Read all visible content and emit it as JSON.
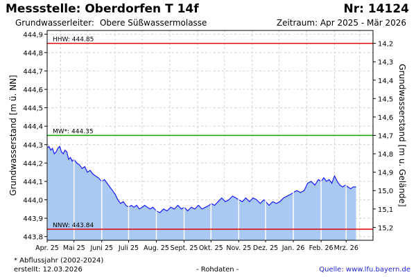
{
  "header": {
    "title": "Messstelle: Oberdorfen T 14f",
    "number": "Nr: 14124",
    "aquifer_label": "Grundwasserleiter:",
    "aquifer_value": "Obere Süßwassermolasse",
    "period": "Zeitraum: Apr 2025 - Mär 2026"
  },
  "footer": {
    "footnote": "* Abflussjahr (2002-2024)",
    "created": "erstellt:  12.03.2026",
    "raw_data": "- Rohdaten -",
    "source": "Quelle: www.lfu.bayern.de"
  },
  "chart_data": {
    "type": "area",
    "title": "Messstelle: Oberdorfen T 14f",
    "ylabel_left": "Grundwasserstand [m ü. NN]",
    "ylabel_right": "Grundwasserstand [m u. Gelände]",
    "ylim_left": [
      443.78,
      444.92
    ],
    "yticks_left": [
      "443,8",
      "443,9",
      "444,0",
      "444,1",
      "444,2",
      "444,3",
      "444,4",
      "444,5",
      "444,6",
      "444,7",
      "444,8",
      "444,9"
    ],
    "yticks_left_values": [
      443.8,
      443.9,
      444.0,
      444.1,
      444.2,
      444.3,
      444.4,
      444.5,
      444.6,
      444.7,
      444.8,
      444.9
    ],
    "yticks_right": [
      "14,2",
      "14,3",
      "14,4",
      "14,5",
      "14,6",
      "14,7",
      "14,8",
      "14,9",
      "15,0",
      "15,1",
      "15,2"
    ],
    "yticks_right_depths": [
      14.2,
      14.3,
      14.4,
      14.5,
      14.6,
      14.7,
      14.8,
      14.9,
      15.0,
      15.1,
      15.2
    ],
    "ground_level": 459.05,
    "xlim": [
      "2025-04-01",
      "2026-03-31"
    ],
    "xticks": [
      {
        "date": "2025-04-01",
        "label": "Apr. 25"
      },
      {
        "date": "2025-05-01",
        "label": "Mai 25"
      },
      {
        "date": "2025-06-01",
        "label": "Juni 25"
      },
      {
        "date": "2025-07-01",
        "label": "Juli 25"
      },
      {
        "date": "2025-08-01",
        "label": "Aug. 25"
      },
      {
        "date": "2025-09-01",
        "label": "Sept. 25"
      },
      {
        "date": "2025-10-01",
        "label": "Okt. 25"
      },
      {
        "date": "2025-11-01",
        "label": "Nov. 25"
      },
      {
        "date": "2025-12-01",
        "label": "Dez. 25"
      },
      {
        "date": "2026-01-01",
        "label": "Jan. 26"
      },
      {
        "date": "2026-02-01",
        "label": "Feb. 26"
      },
      {
        "date": "2026-03-01",
        "label": "Mrz. 26"
      }
    ],
    "reference_lines": [
      {
        "name": "HHW",
        "label": "HHW: 444.85",
        "value": 444.85,
        "color": "#dd0000"
      },
      {
        "name": "MW",
        "label": "MW*: 444.35",
        "value": 444.35,
        "color": "#00a000"
      },
      {
        "name": "NNW",
        "label": "NNW: 443.84",
        "value": 443.84,
        "color": "#dd0000"
      }
    ],
    "series": [
      {
        "line_color": "#1a1aff",
        "fill_color": "#a9c8f2",
        "points": [
          [
            "2025-04-01",
            444.28
          ],
          [
            "2025-04-03",
            444.29
          ],
          [
            "2025-04-05",
            444.27
          ],
          [
            "2025-04-07",
            444.28
          ],
          [
            "2025-04-09",
            444.25
          ],
          [
            "2025-04-11",
            444.26
          ],
          [
            "2025-04-13",
            444.28
          ],
          [
            "2025-04-15",
            444.29
          ],
          [
            "2025-04-17",
            444.26
          ],
          [
            "2025-04-19",
            444.25
          ],
          [
            "2025-04-21",
            444.27
          ],
          [
            "2025-04-23",
            444.26
          ],
          [
            "2025-04-25",
            444.22
          ],
          [
            "2025-04-27",
            444.23
          ],
          [
            "2025-04-29",
            444.21
          ],
          [
            "2025-05-01",
            444.22
          ],
          [
            "2025-05-04",
            444.2
          ],
          [
            "2025-05-07",
            444.19
          ],
          [
            "2025-05-10",
            444.17
          ],
          [
            "2025-05-13",
            444.18
          ],
          [
            "2025-05-16",
            444.15
          ],
          [
            "2025-05-19",
            444.16
          ],
          [
            "2025-05-22",
            444.14
          ],
          [
            "2025-05-25",
            444.13
          ],
          [
            "2025-05-28",
            444.12
          ],
          [
            "2025-06-01",
            444.1
          ],
          [
            "2025-06-04",
            444.11
          ],
          [
            "2025-06-07",
            444.09
          ],
          [
            "2025-06-10",
            444.07
          ],
          [
            "2025-06-13",
            444.05
          ],
          [
            "2025-06-16",
            444.03
          ],
          [
            "2025-06-19",
            444.0
          ],
          [
            "2025-06-22",
            443.98
          ],
          [
            "2025-06-25",
            443.99
          ],
          [
            "2025-06-28",
            443.97
          ],
          [
            "2025-07-01",
            443.96
          ],
          [
            "2025-07-04",
            443.97
          ],
          [
            "2025-07-07",
            443.96
          ],
          [
            "2025-07-10",
            443.97
          ],
          [
            "2025-07-13",
            443.95
          ],
          [
            "2025-07-16",
            443.96
          ],
          [
            "2025-07-19",
            443.97
          ],
          [
            "2025-07-22",
            443.96
          ],
          [
            "2025-07-25",
            443.95
          ],
          [
            "2025-07-28",
            443.96
          ],
          [
            "2025-08-01",
            443.94
          ],
          [
            "2025-08-05",
            443.93
          ],
          [
            "2025-08-09",
            443.95
          ],
          [
            "2025-08-13",
            443.94
          ],
          [
            "2025-08-17",
            443.96
          ],
          [
            "2025-08-21",
            443.95
          ],
          [
            "2025-08-25",
            443.97
          ],
          [
            "2025-08-29",
            443.95
          ],
          [
            "2025-09-01",
            443.96
          ],
          [
            "2025-09-05",
            443.94
          ],
          [
            "2025-09-09",
            443.96
          ],
          [
            "2025-09-13",
            443.95
          ],
          [
            "2025-09-17",
            443.97
          ],
          [
            "2025-09-21",
            443.95
          ],
          [
            "2025-09-25",
            443.96
          ],
          [
            "2025-09-29",
            443.97
          ],
          [
            "2025-10-01",
            443.98
          ],
          [
            "2025-10-05",
            443.97
          ],
          [
            "2025-10-09",
            443.99
          ],
          [
            "2025-10-13",
            444.01
          ],
          [
            "2025-10-17",
            443.99
          ],
          [
            "2025-10-21",
            444.0
          ],
          [
            "2025-10-25",
            444.02
          ],
          [
            "2025-10-29",
            444.01
          ],
          [
            "2025-11-01",
            444.0
          ],
          [
            "2025-11-05",
            443.99
          ],
          [
            "2025-11-09",
            444.01
          ],
          [
            "2025-11-13",
            443.99
          ],
          [
            "2025-11-17",
            444.01
          ],
          [
            "2025-11-21",
            444.0
          ],
          [
            "2025-11-25",
            443.98
          ],
          [
            "2025-11-29",
            444.0
          ],
          [
            "2025-12-01",
            443.99
          ],
          [
            "2025-12-05",
            443.97
          ],
          [
            "2025-12-09",
            443.99
          ],
          [
            "2025-12-13",
            443.98
          ],
          [
            "2025-12-17",
            443.99
          ],
          [
            "2025-12-21",
            444.01
          ],
          [
            "2025-12-25",
            444.02
          ],
          [
            "2025-12-29",
            444.03
          ],
          [
            "2026-01-01",
            444.04
          ],
          [
            "2026-01-05",
            444.05
          ],
          [
            "2026-01-09",
            444.04
          ],
          [
            "2026-01-13",
            444.05
          ],
          [
            "2026-01-17",
            444.09
          ],
          [
            "2026-01-21",
            444.1
          ],
          [
            "2026-01-25",
            444.08
          ],
          [
            "2026-01-29",
            444.11
          ],
          [
            "2026-02-01",
            444.1
          ],
          [
            "2026-02-04",
            444.12
          ],
          [
            "2026-02-07",
            444.1
          ],
          [
            "2026-02-10",
            444.11
          ],
          [
            "2026-02-13",
            444.09
          ],
          [
            "2026-02-16",
            444.13
          ],
          [
            "2026-02-19",
            444.1
          ],
          [
            "2026-02-22",
            444.08
          ],
          [
            "2026-02-25",
            444.07
          ],
          [
            "2026-02-28",
            444.08
          ],
          [
            "2026-03-03",
            444.07
          ],
          [
            "2026-03-06",
            444.06
          ],
          [
            "2026-03-09",
            444.07
          ],
          [
            "2026-03-12",
            444.07
          ]
        ]
      }
    ],
    "grid": true
  }
}
